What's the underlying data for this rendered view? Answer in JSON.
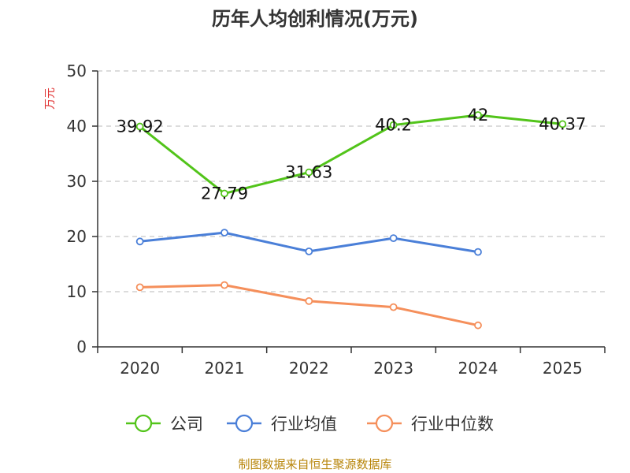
{
  "chart_data": {
    "type": "line",
    "title": "历年人均创利情况(万元)",
    "ylabel": "万元",
    "xlabel": "",
    "categories": [
      "2020",
      "2021",
      "2022",
      "2023",
      "2024",
      "2025"
    ],
    "ylim": [
      0,
      50
    ],
    "yticks": [
      0,
      10,
      20,
      30,
      40,
      50
    ],
    "grid": true,
    "legend_position": "bottom",
    "series": [
      {
        "name": "公司",
        "color": "#52c41a",
        "values": [
          39.92,
          27.79,
          31.63,
          40.2,
          42,
          40.37
        ],
        "labels": [
          "39.92",
          "27.79",
          "31.63",
          "40.2",
          "42",
          "40.37"
        ]
      },
      {
        "name": "行业均值",
        "color": "#4a7fd8",
        "values": [
          19.1,
          20.7,
          17.3,
          19.7,
          17.2,
          null
        ]
      },
      {
        "name": "行业中位数",
        "color": "#f58f5b",
        "values": [
          10.8,
          11.2,
          8.3,
          7.2,
          3.9,
          null
        ]
      }
    ]
  },
  "ylabel_color": "#e03030",
  "footer": "制图数据来自恒生聚源数据库"
}
